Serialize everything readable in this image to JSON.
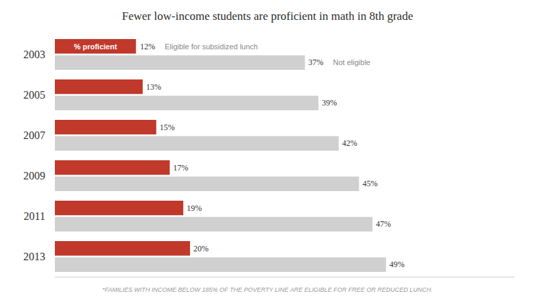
{
  "chart_data": {
    "type": "bar",
    "orientation": "horizontal",
    "title": "Fewer low-income students are proficient in math in 8th grade",
    "categories": [
      "2003",
      "2005",
      "2007",
      "2009",
      "2011",
      "2013"
    ],
    "series": [
      {
        "name": "Eligible for subsidized lunch",
        "color": "#c0392b",
        "values": [
          12,
          13,
          15,
          17,
          19,
          20
        ],
        "value_labels": [
          "12%",
          "13%",
          "15%",
          "17%",
          "19%",
          "20%"
        ]
      },
      {
        "name": "Not eligible",
        "color": "#d0d0d0",
        "values": [
          37,
          39,
          42,
          45,
          47,
          49
        ],
        "value_labels": [
          "37%",
          "39%",
          "42%",
          "45%",
          "47%",
          "49%"
        ]
      }
    ],
    "xlim": [
      0,
      68
    ],
    "tick_labels": "y",
    "grid": false,
    "data_labels": true,
    "annotations": [
      "% proficient"
    ],
    "footnote": "*FAMILIES WITH INCOME BELOW 185% OF THE POVERTY LINE ARE ELIGIBLE FOR FREE OR REDUCED LUNCH."
  }
}
